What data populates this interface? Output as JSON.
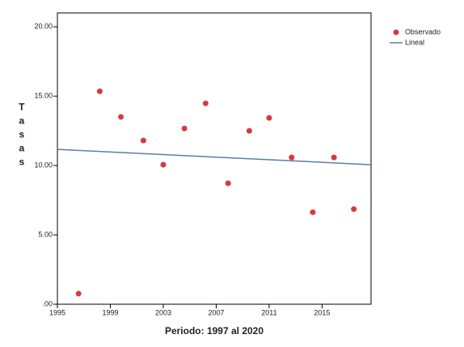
{
  "chart_data": {
    "type": "scatter",
    "x_label": "Periodo: 1997 al 2020",
    "y_label": "Tasas",
    "xlim": [
      1995,
      2018.7
    ],
    "ylim": [
      0,
      21
    ],
    "xticks": [
      1995,
      1999,
      2003,
      2007,
      2011,
      2015
    ],
    "yticks": [
      {
        "value": 0,
        "label": ".00"
      },
      {
        "value": 5,
        "label": "5.00"
      },
      {
        "value": 10,
        "label": "10.00"
      },
      {
        "value": 15,
        "label": "15.00"
      },
      {
        "value": 20,
        "label": "20.00"
      }
    ],
    "series": [
      {
        "name": "Observado",
        "color": "#d63a3f",
        "x": [
          1996.6,
          1998.2,
          1999.8,
          2001.5,
          2003.0,
          2004.6,
          2006.2,
          2007.9,
          2009.5,
          2011.0,
          2012.7,
          2014.3,
          2015.9,
          2017.4
        ],
        "values": [
          0.76,
          15.35,
          13.5,
          11.8,
          10.06,
          12.67,
          14.48,
          8.72,
          12.5,
          13.43,
          10.58,
          6.63,
          10.58,
          6.86
        ]
      },
      {
        "name": "Lineal",
        "color": "#5a7ea6",
        "x": [
          1995,
          2018.7
        ],
        "values": [
          11.16,
          10.06
        ]
      }
    ]
  }
}
